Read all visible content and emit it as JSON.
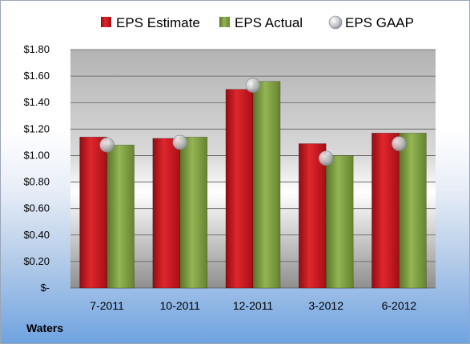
{
  "chart_data": {
    "type": "bar",
    "categories": [
      "7-2011",
      "10-2011",
      "12-2011",
      "3-2012",
      "6-2012"
    ],
    "series": [
      {
        "name": "EPS Estimate",
        "kind": "bar",
        "color": "#c8161d",
        "values": [
          1.14,
          1.13,
          1.5,
          1.09,
          1.17
        ]
      },
      {
        "name": "EPS Actual",
        "kind": "bar",
        "color": "#7a9c3c",
        "values": [
          1.08,
          1.14,
          1.56,
          1.0,
          1.17
        ]
      },
      {
        "name": "EPS GAAP",
        "kind": "marker",
        "color": "#b8bcc4",
        "values": [
          1.08,
          1.1,
          1.53,
          0.98,
          1.09
        ]
      }
    ],
    "ylim": [
      0,
      1.8
    ],
    "yticks": [
      0,
      0.2,
      0.4,
      0.6,
      0.8,
      1.0,
      1.2,
      1.4,
      1.6,
      1.8
    ],
    "ytick_labels": [
      "$-",
      "$0.20",
      "$0.40",
      "$0.60",
      "$0.80",
      "$1.00",
      "$1.20",
      "$1.40",
      "$1.60",
      "$1.80"
    ],
    "grid": true,
    "legend": "top"
  },
  "footer": {
    "company": "Waters"
  }
}
